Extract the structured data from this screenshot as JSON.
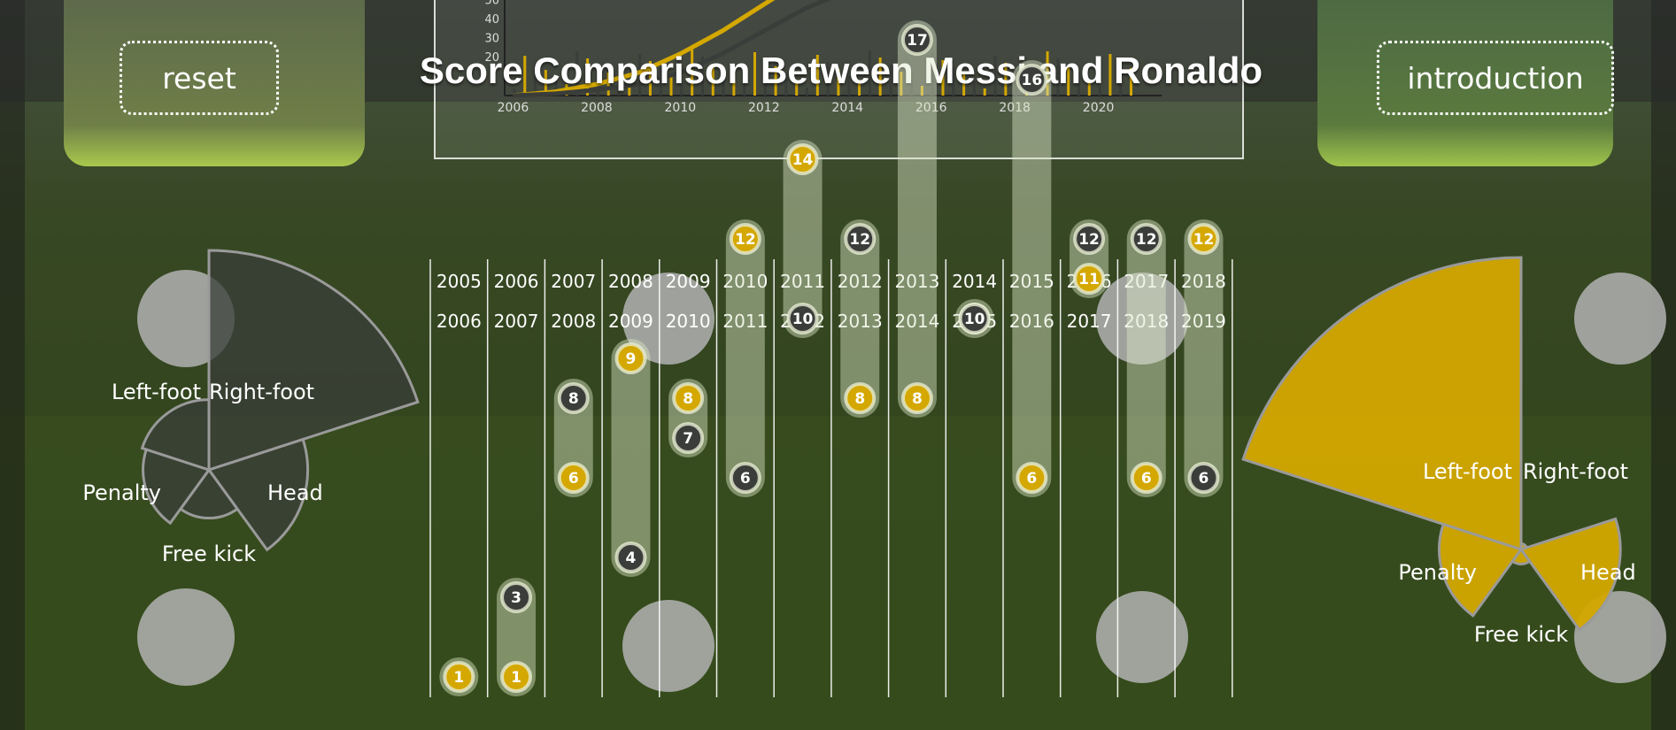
{
  "header": {
    "title": "Score Comparison Between Messi and Ronaldo",
    "reset_label": "reset",
    "intro_label": "introduction"
  },
  "colors": {
    "messi": "#d4a800",
    "ronaldo": "#3a3d3a",
    "highlight": "#e8485a",
    "column_line": "#ffffff"
  },
  "chart_data": [
    {
      "type": "bar",
      "title": "",
      "x_ticks": [
        "2006",
        "2008",
        "2010",
        "2012",
        "2014",
        "2016",
        "2018",
        "2020"
      ],
      "y_ticks": [
        "20",
        "30",
        "40",
        "50"
      ],
      "ylim": [
        0,
        55
      ],
      "description_series": [
        {
          "name": "",
          "color": "#d4a800",
          "kind": "line",
          "x": [
            2006,
            2007,
            2008,
            2009,
            2010,
            2011,
            2012,
            2012.5
          ],
          "y": [
            0,
            2,
            6,
            12,
            22,
            34,
            48,
            55
          ]
        },
        {
          "name": "",
          "color": "#3a3d3a",
          "kind": "line",
          "x": [
            2006,
            2007,
            2008,
            2009,
            2010,
            2011,
            2012,
            2013,
            2014
          ],
          "y": [
            0,
            1,
            3,
            6,
            12,
            22,
            34,
            46,
            55
          ]
        }
      ]
    },
    {
      "type": "scatter",
      "columns_top": [
        "2005",
        "2006",
        "2007",
        "2008",
        "2009",
        "2010",
        "2011",
        "2012",
        "2013",
        "2014",
        "2015",
        "2016",
        "2017",
        "2018"
      ],
      "columns_bottom": [
        "2006",
        "2007",
        "2008",
        "2009",
        "2010",
        "2011",
        "2012",
        "2013",
        "2014",
        "2015",
        "2016",
        "2017",
        "2018",
        "2019"
      ],
      "ylim": [
        0,
        18
      ],
      "series": [
        {
          "name": "",
          "color": "#d4a800",
          "values": [
            1,
            1,
            6,
            9,
            8,
            12,
            14,
            8,
            8,
            10,
            6,
            11,
            6,
            12
          ]
        },
        {
          "name": "",
          "color": "#3a3d3a",
          "values": [
            null,
            3,
            8,
            4,
            7,
            6,
            10,
            12,
            17,
            10,
            16,
            12,
            12,
            6
          ]
        }
      ],
      "highlight_column": "2014"
    },
    {
      "type": "pie",
      "side": "left",
      "categories": [
        "Right-foot",
        "Head",
        "Free kick",
        "Penalty",
        "Left-foot"
      ],
      "values": [
        1.0,
        0.45,
        0.22,
        0.3,
        0.32
      ],
      "color": "#3a3d3a"
    },
    {
      "type": "pie",
      "side": "right",
      "categories": [
        "Left-foot",
        "Right-foot",
        "Head",
        "Free kick",
        "Penalty"
      ],
      "values": [
        1.0,
        0.02,
        0.34,
        0.05,
        0.28
      ],
      "color": "#d4a800"
    }
  ]
}
